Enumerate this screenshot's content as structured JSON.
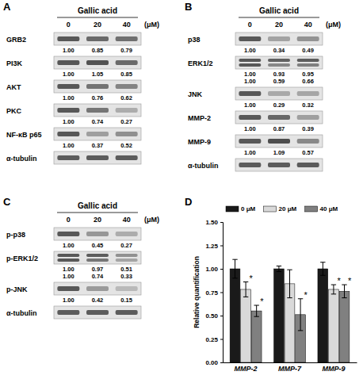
{
  "blots": [
    {
      "letter": "A",
      "title": "Gallic acid",
      "doses": [
        0,
        20,
        40
      ],
      "unit": "(μM)",
      "rows": [
        {
          "label": "GRB2",
          "values": [
            [
              1.0,
              0.85,
              0.79
            ]
          ],
          "value_labels": [
            [
              "1.00",
              "0.85",
              "0.79"
            ]
          ]
        },
        {
          "label": "PI3K",
          "values": [
            [
              1.0,
              1.05,
              0.85
            ]
          ],
          "value_labels": [
            [
              "1.00",
              "1.05",
              "0.85"
            ]
          ]
        },
        {
          "label": "AKT",
          "values": [
            [
              1.0,
              0.76,
              0.62
            ]
          ],
          "value_labels": [
            [
              "1.00",
              "0.76",
              "0.62"
            ]
          ]
        },
        {
          "label": "PKC",
          "values": [
            [
              1.0,
              0.74,
              0.27
            ]
          ],
          "value_labels": [
            [
              "1.00",
              "0.74",
              "0.27"
            ]
          ]
        },
        {
          "label": "NF-κB p65",
          "values": [
            [
              1.0,
              0.37,
              0.52
            ]
          ],
          "value_labels": [
            [
              "1.00",
              "0.37",
              "0.52"
            ]
          ]
        },
        {
          "label": "α-tubulin",
          "values": [],
          "value_labels": []
        }
      ]
    },
    {
      "letter": "B",
      "title": "Gallic acid",
      "doses": [
        0,
        20,
        40
      ],
      "unit": "(μM)",
      "rows": [
        {
          "label": "p38",
          "values": [
            [
              1.0,
              0.34,
              0.49
            ]
          ],
          "value_labels": [
            [
              "1.00",
              "0.34",
              "0.49"
            ]
          ]
        },
        {
          "label": "ERK1/2",
          "values": [
            [
              1.0,
              0.93,
              0.95
            ],
            [
              1.0,
              0.59,
              0.66
            ]
          ],
          "value_labels": [
            [
              "1.00",
              "0.93",
              "0.95"
            ],
            [
              "1.00",
              "0.59",
              "0.66"
            ]
          ]
        },
        {
          "label": "JNK",
          "values": [
            [
              1.0,
              0.29,
              0.32
            ]
          ],
          "value_labels": [
            [
              "1.00",
              "0.29",
              "0.32"
            ]
          ]
        },
        {
          "label": "MMP-2",
          "values": [
            [
              1.0,
              0.87,
              0.39
            ]
          ],
          "value_labels": [
            [
              "1.00",
              "0.87",
              "0.39"
            ]
          ]
        },
        {
          "label": "MMP-9",
          "values": [
            [
              1.0,
              1.09,
              0.57
            ]
          ],
          "value_labels": [
            [
              "1.00",
              "1.09",
              "0.57"
            ]
          ]
        },
        {
          "label": "α-tubulin",
          "values": [],
          "value_labels": []
        }
      ]
    },
    {
      "letter": "C",
      "title": "Gallic acid",
      "doses": [
        0,
        20,
        40
      ],
      "unit": "(μM)",
      "rows": [
        {
          "label": "p-p38",
          "values": [
            [
              1.0,
              0.45,
              0.27
            ]
          ],
          "value_labels": [
            [
              "1.00",
              "0.45",
              "0.27"
            ]
          ]
        },
        {
          "label": "p-ERK1/2",
          "values": [
            [
              1.0,
              0.97,
              0.51
            ],
            [
              1.0,
              0.74,
              0.33
            ]
          ],
          "value_labels": [
            [
              "1.00",
              "0.97",
              "0.51"
            ],
            [
              "1.00",
              "0.74",
              "0.33"
            ]
          ]
        },
        {
          "label": "p-JNK",
          "values": [
            [
              1.0,
              0.42,
              0.15
            ]
          ],
          "value_labels": [
            [
              "1.00",
              "0.42",
              "0.15"
            ]
          ]
        },
        {
          "label": "α-tubulin",
          "values": [],
          "value_labels": []
        }
      ]
    }
  ],
  "chart_data": {
    "type": "bar",
    "panel_label": "D",
    "y_label": "Relative quantification",
    "categories": [
      "MMP-2",
      "MMP-7",
      "MMP-9"
    ],
    "series": [
      {
        "name": "0 μM",
        "color": "#1a1a1a",
        "values": [
          1.0,
          1.0,
          1.0
        ],
        "errors": [
          0.1,
          0.03,
          0.07
        ],
        "significance": [
          null,
          null,
          null
        ]
      },
      {
        "name": "20 μM",
        "color": "#d9d9d9",
        "values": [
          0.78,
          0.84,
          0.78
        ],
        "errors": [
          0.08,
          0.15,
          0.05
        ],
        "significance": [
          "*",
          null,
          "*"
        ]
      },
      {
        "name": "40 μM",
        "color": "#808080",
        "values": [
          0.55,
          0.51,
          0.76
        ],
        "errors": [
          0.06,
          0.17,
          0.07
        ],
        "significance": [
          "*",
          "*",
          "*"
        ]
      }
    ],
    "ylim": [
      0,
      1.5
    ],
    "yticks": [
      {
        "value": 0,
        "label": "0.00"
      },
      {
        "value": 0.25,
        "label": "0.25"
      },
      {
        "value": 0.5,
        "label": "0.50"
      },
      {
        "value": 0.75,
        "label": "0.75"
      },
      {
        "value": 1,
        "label": "1.00"
      },
      {
        "value": 1.25,
        "label": "1.25"
      },
      {
        "value": 1.5,
        "label": "1.50"
      }
    ],
    "grid": false,
    "legend": "top"
  }
}
